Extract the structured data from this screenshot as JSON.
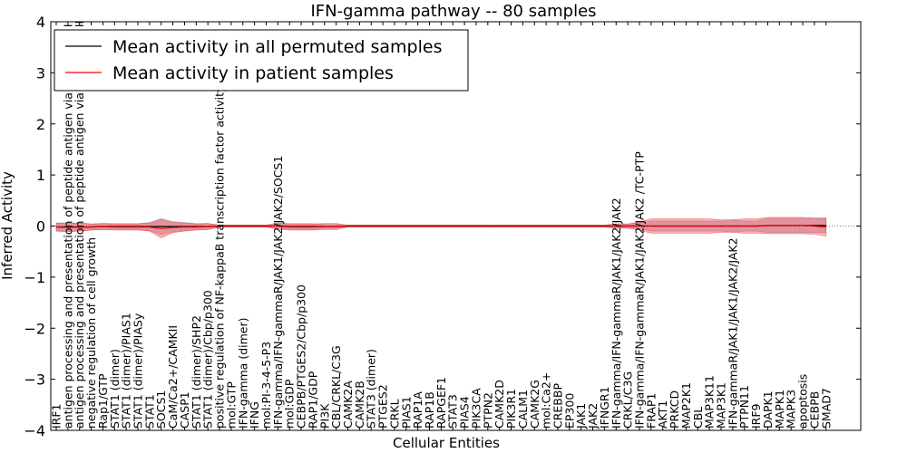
{
  "chart_data": {
    "type": "line",
    "title": "IFN-gamma pathway -- 80 samples",
    "xlabel": "Cellular Entities",
    "ylabel": "Inferred Activity",
    "ylim": [
      -4,
      4
    ],
    "yticks": [
      -4,
      -3,
      -2,
      -1,
      0,
      1,
      2,
      3,
      4
    ],
    "legend_position": "top-left",
    "categories": [
      "IRF1",
      "antigen processing and presentation of peptide antigen via MHC class I",
      "antigen processing and presentation of peptide antigen via MHC class II",
      "negative regulation of cell growth",
      "Rap1/GTP",
      "STAT1 (dimer)",
      "STAT1 (dimer)/PIAS1",
      "STAT1 (dimer)/PIASy",
      "STAT1",
      "SOCS1",
      "CaM/Ca2+/CAMKII",
      "CASP1",
      "STAT1 (dimer)/SHP2",
      "STAT1 (dimer)/Cbp/p300",
      "positive regulation of NF-kappaB transcription factor activity",
      "mol:GTP",
      "IFN-gamma (dimer)",
      "IFNG",
      "mol:PI-3-4-5-P3",
      "IFN-gamma/IFN-gammaR/JAK1/JAK2/JAK2/SOCS1",
      "mol:GDP",
      "CEBPB/PTGES2/Cbp/p300",
      "RAP1/GDP",
      "PI3K",
      "CBL/CRKL/C3G",
      "CAMK2A",
      "CAMK2B",
      "STAT3 (dimer)",
      "PTGES2",
      "CRKL",
      "PIAS1",
      "RAP1A",
      "RAP1B",
      "RAPGEF1",
      "STAT3",
      "PIAS4",
      "PIK3CA",
      "PTPN2",
      "CAMK2D",
      "PIK3R1",
      "CALM1",
      "CAMK2G",
      "mol:Ca2+",
      "CREBBP",
      "EP300",
      "JAK1",
      "JAK2",
      "IFNGR1",
      "IFN-gamma/IFN-gammaR/JAK1/JAK2/JAK2",
      "CRKL/C3G",
      "IFN-gamma/IFN-gammaR/JAK1/JAK2/JAK2  /TC-PTP",
      "FRAP1",
      "AKT1",
      "PRKCD",
      "MAP2K1",
      "CBL",
      "MAP3K11",
      "MAP3K1",
      "IFN-gammaR/JAK1/JAK1/JAK2/JAK2",
      "PTPN11",
      "IRF9",
      "DAPK1",
      "MAPK1",
      "MAPK3",
      "apoptosis",
      "CEBPB",
      "SMAD7"
    ],
    "series": [
      {
        "name": "Mean activity in all permuted samples",
        "color": "#000000",
        "band_color": "#8888aa",
        "values": [
          -0.02,
          -0.02,
          -0.02,
          -0.02,
          -0.01,
          -0.01,
          -0.01,
          -0.01,
          -0.01,
          -0.01,
          -0.01,
          -0.01,
          -0.01,
          -0.01,
          0.0,
          0.0,
          0.0,
          0.0,
          0.0,
          0.0,
          -0.01,
          -0.01,
          -0.01,
          -0.01,
          -0.01,
          0.0,
          0.0,
          0.0,
          0.0,
          0.0,
          0.0,
          0.0,
          0.0,
          0.0,
          0.0,
          0.0,
          0.0,
          0.0,
          0.0,
          0.0,
          0.0,
          0.0,
          0.0,
          0.0,
          0.0,
          0.0,
          0.0,
          0.0,
          0.0,
          0.0,
          0.0,
          0.0,
          0.0,
          0.0,
          0.0,
          0.0,
          0.0,
          0.0,
          0.0,
          0.0,
          0.0,
          0.01,
          0.01,
          0.01,
          0.01,
          0.01,
          0.01
        ],
        "band": [
          0.08,
          0.08,
          0.08,
          0.06,
          0.06,
          0.06,
          0.06,
          0.06,
          0.08,
          0.16,
          0.1,
          0.08,
          0.06,
          0.06,
          0.02,
          0.02,
          0.02,
          0.02,
          0.02,
          0.04,
          0.06,
          0.06,
          0.06,
          0.04,
          0.04,
          0.02,
          0.02,
          0.02,
          0.02,
          0.02,
          0.02,
          0.02,
          0.02,
          0.02,
          0.02,
          0.02,
          0.02,
          0.02,
          0.02,
          0.02,
          0.02,
          0.02,
          0.02,
          0.02,
          0.02,
          0.02,
          0.02,
          0.02,
          0.04,
          0.04,
          0.06,
          0.1,
          0.1,
          0.1,
          0.1,
          0.1,
          0.1,
          0.1,
          0.12,
          0.1,
          0.1,
          0.14,
          0.14,
          0.14,
          0.14,
          0.14,
          0.14
        ]
      },
      {
        "name": "Mean activity in patient samples",
        "color": "#ff0000",
        "band_color": "#ff0000",
        "values": [
          -0.02,
          -0.03,
          -0.02,
          -0.02,
          -0.01,
          -0.02,
          -0.02,
          -0.02,
          -0.02,
          -0.05,
          -0.03,
          -0.02,
          -0.02,
          -0.01,
          0.0,
          0.0,
          0.0,
          0.0,
          0.0,
          0.0,
          -0.02,
          -0.02,
          -0.02,
          -0.01,
          -0.01,
          0.0,
          0.0,
          0.0,
          0.0,
          0.0,
          0.0,
          0.0,
          0.0,
          0.0,
          0.0,
          0.0,
          0.0,
          0.0,
          0.0,
          0.0,
          0.0,
          0.0,
          0.0,
          0.0,
          0.0,
          0.0,
          0.0,
          0.0,
          0.0,
          0.0,
          0.0,
          0.0,
          0.0,
          0.0,
          0.0,
          0.0,
          0.0,
          0.0,
          0.0,
          0.0,
          0.0,
          0.01,
          0.01,
          0.01,
          0.01,
          0.0,
          -0.02
        ],
        "band": [
          0.08,
          0.08,
          0.08,
          0.06,
          0.06,
          0.06,
          0.06,
          0.06,
          0.08,
          0.18,
          0.1,
          0.08,
          0.06,
          0.06,
          0.02,
          0.02,
          0.02,
          0.02,
          0.02,
          0.06,
          0.06,
          0.06,
          0.06,
          0.06,
          0.06,
          0.02,
          0.02,
          0.02,
          0.02,
          0.02,
          0.02,
          0.02,
          0.02,
          0.02,
          0.02,
          0.02,
          0.02,
          0.02,
          0.02,
          0.02,
          0.02,
          0.02,
          0.02,
          0.02,
          0.02,
          0.02,
          0.02,
          0.02,
          0.04,
          0.04,
          0.08,
          0.14,
          0.14,
          0.14,
          0.14,
          0.14,
          0.14,
          0.12,
          0.12,
          0.14,
          0.14,
          0.16,
          0.16,
          0.16,
          0.16,
          0.16,
          0.18
        ]
      }
    ]
  }
}
